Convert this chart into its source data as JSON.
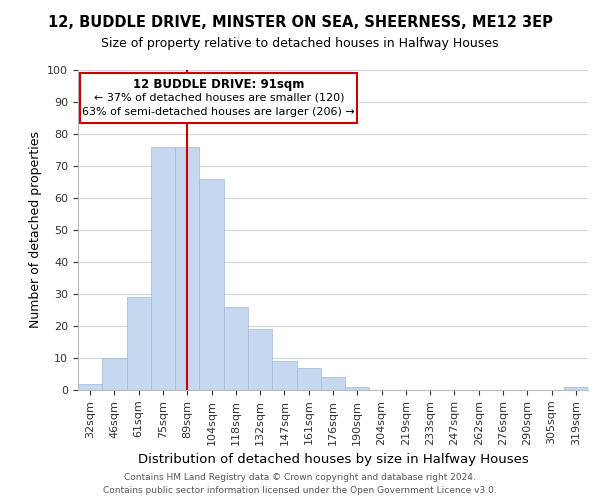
{
  "title1": "12, BUDDLE DRIVE, MINSTER ON SEA, SHEERNESS, ME12 3EP",
  "title2": "Size of property relative to detached houses in Halfway Houses",
  "xlabel": "Distribution of detached houses by size in Halfway Houses",
  "ylabel": "Number of detached properties",
  "bar_color": "#c5d8f0",
  "bar_edge_color": "#a0b8d8",
  "categories": [
    "32sqm",
    "46sqm",
    "61sqm",
    "75sqm",
    "89sqm",
    "104sqm",
    "118sqm",
    "132sqm",
    "147sqm",
    "161sqm",
    "176sqm",
    "190sqm",
    "204sqm",
    "219sqm",
    "233sqm",
    "247sqm",
    "262sqm",
    "276sqm",
    "290sqm",
    "305sqm",
    "319sqm"
  ],
  "values": [
    2,
    10,
    29,
    76,
    76,
    66,
    26,
    19,
    9,
    7,
    4,
    1,
    0,
    0,
    0,
    0,
    0,
    0,
    0,
    0,
    1
  ],
  "ylim": [
    0,
    100
  ],
  "yticks": [
    0,
    10,
    20,
    30,
    40,
    50,
    60,
    70,
    80,
    90,
    100
  ],
  "vline_x_idx": 4,
  "vline_color": "#cc0000",
  "annotation_title": "12 BUDDLE DRIVE: 91sqm",
  "annotation_line1": "← 37% of detached houses are smaller (120)",
  "annotation_line2": "63% of semi-detached houses are larger (206) →",
  "footer1": "Contains HM Land Registry data © Crown copyright and database right 2024.",
  "footer2": "Contains public sector information licensed under the Open Government Licence v3.0.",
  "background_color": "#ffffff",
  "grid_color": "#d0d8e8"
}
